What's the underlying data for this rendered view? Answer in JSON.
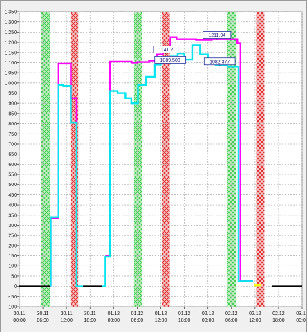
{
  "chart_data": {
    "type": "line",
    "title": "",
    "xlabel": "",
    "ylabel": "",
    "ylim": [
      -100,
      1350
    ],
    "y_ticks": [
      -100,
      -50,
      0,
      50,
      100,
      150,
      200,
      250,
      300,
      350,
      400,
      450,
      500,
      550,
      600,
      650,
      700,
      750,
      800,
      850,
      900,
      950,
      1000,
      1050,
      1100,
      1150,
      1200,
      1250,
      1300,
      1350
    ],
    "y_tick_labels": [
      "- 100",
      "- 50",
      "0",
      "50",
      "100",
      "150",
      "200",
      "250",
      "300",
      "350",
      "400",
      "450",
      "500",
      "550",
      "600",
      "650",
      "700",
      "750",
      "800",
      "850",
      "900",
      "950",
      "1 000",
      "1 050",
      "1 100",
      "1 150",
      "1 200",
      "1 250",
      "1 300",
      "1 350"
    ],
    "x_unit": "hours from 30.11 00:00",
    "xlim": [
      0,
      72
    ],
    "x_ticks": [
      {
        "x": 0,
        "date": "30.11",
        "time": "00:00"
      },
      {
        "x": 6,
        "date": "30.11",
        "time": "06:00"
      },
      {
        "x": 12,
        "date": "30.11",
        "time": "12:00"
      },
      {
        "x": 18,
        "date": "30.11",
        "time": "18:00"
      },
      {
        "x": 24,
        "date": "01.12",
        "time": "00:00"
      },
      {
        "x": 30,
        "date": "01.12",
        "time": "06:00"
      },
      {
        "x": 36,
        "date": "01.12",
        "time": "12:00"
      },
      {
        "x": 42,
        "date": "01.12",
        "time": "18:00"
      },
      {
        "x": 48,
        "date": "02.12",
        "time": "00:00"
      },
      {
        "x": 54,
        "date": "02.12",
        "time": "06:00"
      },
      {
        "x": 60,
        "date": "02.12",
        "time": "12:00"
      },
      {
        "x": 66,
        "date": "02.12",
        "time": "18:00"
      },
      {
        "x": 72,
        "date": "03.12",
        "time": "00:00"
      }
    ],
    "grid": true,
    "bands": [
      {
        "from": 5.5,
        "to": 7.8,
        "color": "#2ecc40"
      },
      {
        "from": 13.0,
        "to": 15.0,
        "color": "#e02020"
      },
      {
        "from": 29.2,
        "to": 31.3,
        "color": "#2ecc40"
      },
      {
        "from": 36.3,
        "to": 38.3,
        "color": "#e02020"
      },
      {
        "from": 53.0,
        "to": 55.3,
        "color": "#2ecc40"
      },
      {
        "from": 60.3,
        "to": 62.4,
        "color": "#e02020"
      }
    ],
    "series": [
      {
        "color": "#000000",
        "segments": [
          [
            [
              0,
              0
            ],
            [
              8,
              0
            ]
          ],
          [
            [
              16.2,
              0
            ],
            [
              21,
              0
            ]
          ],
          [
            [
              64.4,
              0
            ],
            [
              72,
              0
            ]
          ]
        ]
      },
      {
        "color": "#ff00ff",
        "segments": [
          [
            [
              8,
              0
            ],
            [
              8,
              335
            ],
            [
              10,
              335
            ],
            [
              10,
              1095
            ],
            [
              13.1,
              1095
            ],
            [
              13.1,
              925
            ],
            [
              14.6,
              925
            ],
            [
              14.6,
              805
            ]
          ],
          [
            [
              21.9,
              150
            ],
            [
              23.1,
              150
            ],
            [
              23.1,
              1105
            ],
            [
              28.6,
              1105
            ],
            [
              28.6,
              1100
            ],
            [
              30,
              1100
            ],
            [
              30,
              1103
            ],
            [
              33,
              1103
            ],
            [
              33,
              1110
            ],
            [
              35,
              1110
            ],
            [
              35,
              1140
            ],
            [
              36.5,
              1140
            ],
            [
              36.5,
              1160
            ],
            [
              38.5,
              1160
            ],
            [
              38.5,
              1225
            ],
            [
              40,
              1225
            ],
            [
              40,
              1215
            ],
            [
              45,
              1215
            ],
            [
              45,
              1212
            ],
            [
              49,
              1212
            ],
            [
              49,
              1215
            ],
            [
              55.5,
              1215
            ],
            [
              55.5,
              1195
            ],
            [
              56.3,
              1195
            ],
            [
              56.3,
              25
            ],
            [
              59.5,
              25
            ]
          ]
        ]
      },
      {
        "color": "#00e5ee",
        "segments": [
          [
            [
              8,
              0
            ],
            [
              8,
              340
            ],
            [
              10,
              340
            ],
            [
              10,
              990
            ],
            [
              11.2,
              990
            ],
            [
              11.2,
              985
            ],
            [
              13.1,
              985
            ],
            [
              13.1,
              805
            ],
            [
              14.6,
              805
            ],
            [
              14.6,
              0
            ],
            [
              16.2,
              0
            ]
          ],
          [
            [
              21,
              0
            ],
            [
              21.9,
              0
            ],
            [
              21.9,
              145
            ],
            [
              23.1,
              145
            ],
            [
              23.1,
              960
            ],
            [
              25,
              960
            ],
            [
              25,
              950
            ],
            [
              27,
              950
            ],
            [
              27,
              925
            ],
            [
              28.5,
              925
            ],
            [
              28.5,
              900
            ],
            [
              30.2,
              900
            ],
            [
              30.2,
              990
            ],
            [
              32.2,
              990
            ],
            [
              32.2,
              1030
            ],
            [
              34.5,
              1030
            ],
            [
              34.5,
              1090
            ],
            [
              36,
              1090
            ],
            [
              36,
              1115
            ],
            [
              38.6,
              1115
            ],
            [
              38.6,
              1130
            ],
            [
              40.3,
              1130
            ],
            [
              40.3,
              1145
            ],
            [
              42,
              1145
            ],
            [
              42,
              1115
            ],
            [
              44,
              1115
            ],
            [
              44,
              1185
            ],
            [
              46,
              1185
            ],
            [
              46,
              1140
            ],
            [
              48,
              1140
            ],
            [
              48,
              1095
            ],
            [
              50,
              1095
            ],
            [
              50,
              1085
            ],
            [
              53,
              1085
            ],
            [
              53,
              1080
            ],
            [
              55.8,
              1080
            ],
            [
              55.8,
              25
            ],
            [
              59.5,
              25
            ]
          ]
        ]
      },
      {
        "color": "#ffff00",
        "segments": [
          [
            [
              59.8,
              5
            ],
            [
              61.5,
              5
            ]
          ]
        ]
      }
    ],
    "annotations": [
      {
        "text": "1211.94",
        "x": 50.3,
        "y": 1212,
        "pointer_color": "#ff00ff"
      },
      {
        "text": "1141.2",
        "x": 37.3,
        "y": 1141,
        "pointer_color": "#00e5ee"
      },
      {
        "text": "1089.503",
        "x": 38.4,
        "y": 1090,
        "pointer_color": "#ff00ff"
      },
      {
        "text": "1082.377",
        "x": 51.0,
        "y": 1082,
        "pointer_color": "#00e5ee"
      }
    ]
  }
}
